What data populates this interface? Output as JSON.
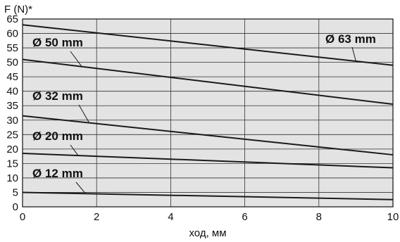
{
  "chart_data": {
    "type": "line",
    "xlabel": "ход, мм",
    "ylabel": "F (N)*",
    "xlim": [
      0,
      10
    ],
    "ylim": [
      0,
      65
    ],
    "xticks": [
      0,
      2,
      4,
      6,
      8,
      10
    ],
    "yticks": [
      0,
      5,
      10,
      15,
      20,
      25,
      30,
      35,
      40,
      45,
      50,
      55,
      60,
      65
    ],
    "grid": true,
    "background_color": "#e3e3e3",
    "line_color": "#1a1a1a",
    "series": [
      {
        "name": "Ø 63 mm",
        "x": [
          0,
          10
        ],
        "y": [
          63,
          49
        ]
      },
      {
        "name": "Ø 50 mm",
        "x": [
          0,
          10
        ],
        "y": [
          51,
          35.5
        ]
      },
      {
        "name": "Ø 32 mm",
        "x": [
          0,
          10
        ],
        "y": [
          31.5,
          18
        ]
      },
      {
        "name": "Ø 20 mm",
        "x": [
          0,
          10
        ],
        "y": [
          18.5,
          13.5
        ]
      },
      {
        "name": "Ø 12 mm",
        "x": [
          0,
          10
        ],
        "y": [
          5,
          2.5
        ]
      }
    ]
  }
}
